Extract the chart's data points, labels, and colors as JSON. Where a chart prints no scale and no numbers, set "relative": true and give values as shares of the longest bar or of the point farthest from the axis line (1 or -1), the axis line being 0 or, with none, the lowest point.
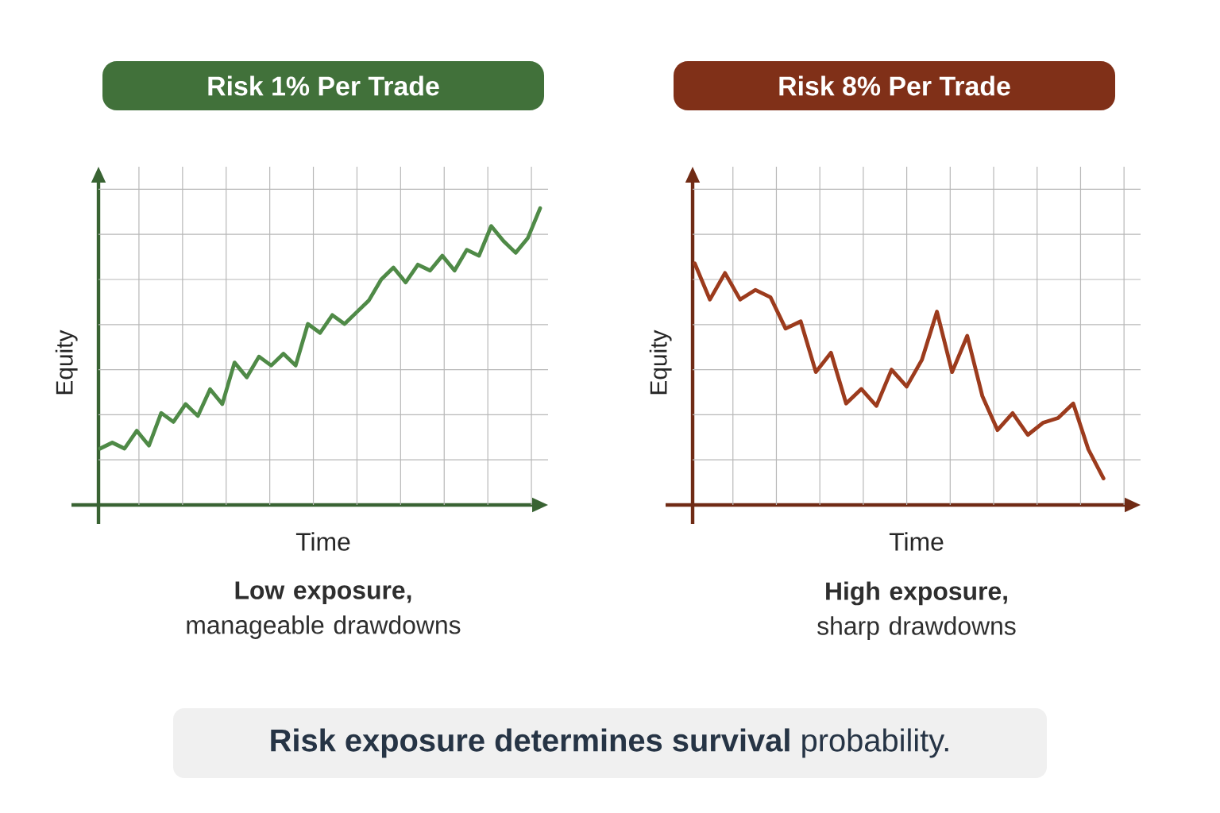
{
  "chart_data": [
    {
      "type": "line",
      "title": "Risk 1% Per Trade",
      "xlabel": "Time",
      "ylabel": "Equity",
      "relative": true,
      "grid": true,
      "categories": [
        null,
        null,
        null,
        null,
        null,
        null,
        null,
        null,
        null,
        null,
        null,
        null,
        null,
        null,
        null,
        null,
        null,
        null,
        null,
        null,
        null,
        null,
        null,
        null,
        null,
        null,
        null,
        null,
        null,
        null,
        null,
        null,
        null,
        null,
        null,
        null,
        null
      ],
      "color": "#4f8a47",
      "values": [
        0.19,
        0.21,
        0.19,
        0.25,
        0.2,
        0.31,
        0.28,
        0.34,
        0.3,
        0.39,
        0.34,
        0.48,
        0.43,
        0.5,
        0.47,
        0.51,
        0.47,
        0.61,
        0.58,
        0.64,
        0.61,
        0.65,
        0.69,
        0.76,
        0.8,
        0.75,
        0.81,
        0.79,
        0.84,
        0.79,
        0.86,
        0.84,
        0.94,
        0.89,
        0.85,
        0.9,
        1
      ],
      "annotations": [
        "**Low exposure,** manageable drawdowns"
      ]
    },
    {
      "type": "line",
      "title": "Risk 8% Per Trade",
      "xlabel": "Time",
      "ylabel": "Equity",
      "relative": true,
      "grid": true,
      "categories": [
        null,
        null,
        null,
        null,
        null,
        null,
        null,
        null,
        null,
        null,
        null,
        null,
        null,
        null,
        null,
        null,
        null,
        null,
        null,
        null,
        null,
        null,
        null,
        null,
        null,
        null,
        null,
        null
      ],
      "color": "#9c3b1d",
      "values": [
        1,
        0.85,
        0.96,
        0.85,
        0.89,
        0.86,
        0.73,
        0.76,
        0.55,
        0.63,
        0.42,
        0.48,
        0.41,
        0.56,
        0.49,
        0.6,
        0.8,
        0.55,
        0.7,
        0.45,
        0.31,
        0.38,
        0.29,
        0.34,
        0.36,
        0.42,
        0.23,
        0.11
      ],
      "annotations": [
        "**High exposure,** sharp drawdowns"
      ]
    },
    {
      "type": "other",
      "annotations": [
        "**Risk exposure determines survival** probability."
      ]
    }
  ]
}
